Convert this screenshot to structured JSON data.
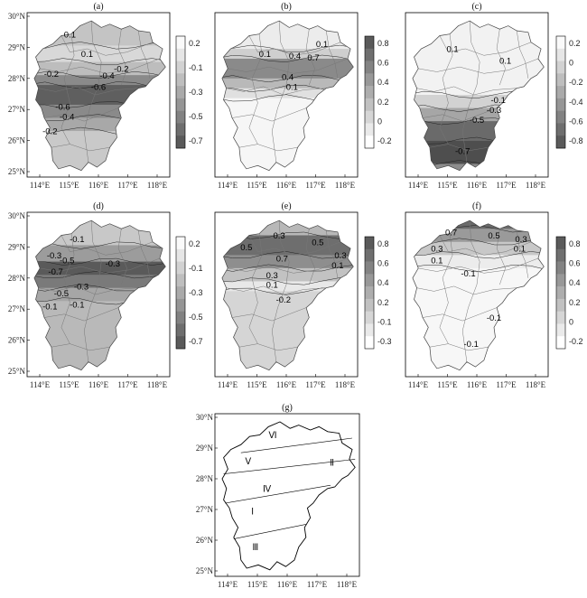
{
  "map_panels": [
    {
      "label": "(a)",
      "lat_ticks": [
        "30°N",
        "29°N",
        "28°N",
        "27°N",
        "26°N",
        "25°N"
      ],
      "lon_ticks": [
        "114°E",
        "115°E",
        "116°E",
        "117°E",
        "118°E"
      ],
      "colorbar_ticks": [
        "0.2",
        "-0.1",
        "-0.3",
        "-0.5",
        "-0.7"
      ],
      "contour_labels": [
        "0.1",
        "0.1",
        "-0.2",
        "-0.4",
        "-0.2",
        "-0.6",
        "-0.6",
        "-0.4",
        "-0.2"
      ]
    },
    {
      "label": "(b)",
      "lat_ticks": [],
      "lon_ticks": [
        "114°E",
        "115°E",
        "116°E",
        "117°E",
        "118°E"
      ],
      "colorbar_ticks": [
        "0.8",
        "0.6",
        "0.4",
        "0.2",
        "0",
        "-0.2"
      ],
      "contour_labels": [
        "0.1",
        "0.1",
        "0.4",
        "0.7",
        "0.4",
        "0.1"
      ]
    },
    {
      "label": "(c)",
      "lat_ticks": [],
      "lon_ticks": [
        "114°E",
        "115°E",
        "116°E",
        "117°E",
        "118°E"
      ],
      "colorbar_ticks": [
        "0.2",
        "0",
        "-0.2",
        "-0.4",
        "-0.6",
        "-0.8"
      ],
      "contour_labels": [
        "0.1",
        "0.1",
        "-0.1",
        "-0.3",
        "-0.5",
        "-0.7"
      ]
    },
    {
      "label": "(d)",
      "lat_ticks": [
        "30°N",
        "29°N",
        "28°N",
        "27°N",
        "26°N",
        "25°N"
      ],
      "lon_ticks": [
        "114°E",
        "115°E",
        "116°E",
        "117°E",
        "118°E"
      ],
      "colorbar_ticks": [
        "0.2",
        "-0.1",
        "-0.3",
        "-0.5",
        "-0.7"
      ],
      "contour_labels": [
        "-0.1",
        "-0.3",
        "-0.5",
        "-0.7",
        "-0.5",
        "-0.3",
        "-0.1",
        "-0.3",
        "-0.1"
      ]
    },
    {
      "label": "(e)",
      "lat_ticks": [],
      "lon_ticks": [
        "114°E",
        "115°E",
        "116°E",
        "117°E",
        "118°E"
      ],
      "colorbar_ticks": [
        "0.8",
        "0.6",
        "0.4",
        "0.2",
        "-0.1",
        "-0.3"
      ],
      "contour_labels": [
        "0.5",
        "0.3",
        "0.5",
        "0.7",
        "0.3",
        "0.1",
        "0.3",
        "0.1",
        "-0.2"
      ]
    },
    {
      "label": "(f)",
      "lat_ticks": [],
      "lon_ticks": [
        "114°E",
        "115°E",
        "116°E",
        "117°E",
        "118°E"
      ],
      "colorbar_ticks": [
        "0.8",
        "0.6",
        "0.4",
        "0.2",
        "0",
        "-0.2"
      ],
      "contour_labels": [
        "0.7",
        "0.5",
        "0.3",
        "0.3",
        "0.1",
        "0.1",
        "-0.1",
        "-0.1",
        "-0.1"
      ]
    }
  ],
  "region_panel": {
    "label": "(g)",
    "lat_ticks": [
      "30°N",
      "29°N",
      "28°N",
      "27°N",
      "26°N",
      "25°N"
    ],
    "lon_ticks": [
      "114°E",
      "115°E",
      "116°E",
      "117°E",
      "118°E"
    ],
    "regions": [
      "Ⅵ",
      "Ⅴ",
      "Ⅱ",
      "Ⅳ",
      "Ⅰ",
      "Ⅲ"
    ]
  }
}
